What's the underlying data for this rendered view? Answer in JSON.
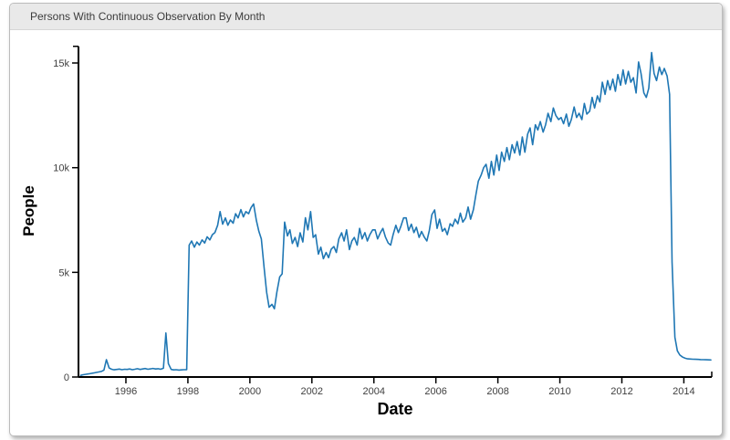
{
  "window": {
    "title": "Persons With Continuous Observation By Month"
  },
  "colors": {
    "line": "#1f77b4",
    "axis": "#000000",
    "tick_label": "#404040",
    "titlebar_bg": "#e9e9e9",
    "card_border": "#bcbcbc",
    "plot_bg": "#ffffff"
  },
  "chart_data": {
    "type": "line",
    "title": "Persons With Continuous Observation By Month",
    "xlabel": "Date",
    "ylabel": "People",
    "grid": false,
    "legend": "none",
    "xlim": [
      1994.47,
      2014.9
    ],
    "ylim": [
      0,
      15800
    ],
    "x_ticks": [
      1996,
      1998,
      2000,
      2002,
      2004,
      2006,
      2008,
      2010,
      2012,
      2014
    ],
    "x_tick_labels": [
      "1996",
      "1998",
      "2000",
      "2002",
      "2004",
      "2006",
      "2008",
      "2010",
      "2012",
      "2014"
    ],
    "y_ticks": [
      0,
      5000,
      10000,
      15000
    ],
    "y_tick_labels": [
      "0",
      "5k",
      "10k",
      "15k"
    ],
    "series": [
      {
        "name": "People",
        "points": [
          [
            1994.54,
            80
          ],
          [
            1994.62,
            110
          ],
          [
            1994.71,
            130
          ],
          [
            1994.79,
            150
          ],
          [
            1994.87,
            170
          ],
          [
            1994.96,
            190
          ],
          [
            1995.04,
            220
          ],
          [
            1995.12,
            240
          ],
          [
            1995.21,
            265
          ],
          [
            1995.29,
            330
          ],
          [
            1995.37,
            830
          ],
          [
            1995.46,
            430
          ],
          [
            1995.54,
            370
          ],
          [
            1995.62,
            345
          ],
          [
            1995.71,
            360
          ],
          [
            1995.79,
            380
          ],
          [
            1995.87,
            350
          ],
          [
            1995.96,
            370
          ],
          [
            1996.04,
            360
          ],
          [
            1996.12,
            385
          ],
          [
            1996.21,
            350
          ],
          [
            1996.29,
            370
          ],
          [
            1996.37,
            395
          ],
          [
            1996.46,
            360
          ],
          [
            1996.54,
            385
          ],
          [
            1996.62,
            405
          ],
          [
            1996.71,
            370
          ],
          [
            1996.79,
            390
          ],
          [
            1996.87,
            410
          ],
          [
            1996.96,
            385
          ],
          [
            1997.04,
            395
          ],
          [
            1997.12,
            370
          ],
          [
            1997.21,
            420
          ],
          [
            1997.29,
            2100
          ],
          [
            1997.37,
            640
          ],
          [
            1997.46,
            360
          ],
          [
            1997.54,
            340
          ],
          [
            1997.62,
            350
          ],
          [
            1997.71,
            330
          ],
          [
            1997.79,
            340
          ],
          [
            1997.87,
            350
          ],
          [
            1997.96,
            355
          ],
          [
            1998.04,
            6300
          ],
          [
            1998.12,
            6500
          ],
          [
            1998.21,
            6200
          ],
          [
            1998.29,
            6450
          ],
          [
            1998.37,
            6300
          ],
          [
            1998.46,
            6550
          ],
          [
            1998.54,
            6400
          ],
          [
            1998.62,
            6700
          ],
          [
            1998.71,
            6550
          ],
          [
            1998.79,
            6800
          ],
          [
            1998.87,
            6900
          ],
          [
            1998.96,
            7250
          ],
          [
            1999.04,
            7900
          ],
          [
            1999.12,
            7300
          ],
          [
            1999.21,
            7600
          ],
          [
            1999.29,
            7250
          ],
          [
            1999.37,
            7500
          ],
          [
            1999.46,
            7350
          ],
          [
            1999.54,
            7800
          ],
          [
            1999.62,
            7600
          ],
          [
            1999.71,
            8000
          ],
          [
            1999.79,
            7650
          ],
          [
            1999.87,
            7900
          ],
          [
            1999.96,
            7800
          ],
          [
            2000.04,
            8100
          ],
          [
            2000.12,
            8270
          ],
          [
            2000.21,
            7470
          ],
          [
            2000.29,
            6960
          ],
          [
            2000.37,
            6600
          ],
          [
            2000.46,
            5200
          ],
          [
            2000.54,
            4050
          ],
          [
            2000.62,
            3330
          ],
          [
            2000.71,
            3470
          ],
          [
            2000.79,
            3260
          ],
          [
            2000.87,
            4050
          ],
          [
            2000.96,
            4780
          ],
          [
            2001.04,
            4930
          ],
          [
            2001.12,
            7400
          ],
          [
            2001.21,
            6740
          ],
          [
            2001.29,
            7030
          ],
          [
            2001.37,
            6380
          ],
          [
            2001.46,
            6670
          ],
          [
            2001.54,
            6230
          ],
          [
            2001.62,
            6890
          ],
          [
            2001.71,
            6450
          ],
          [
            2001.79,
            7610
          ],
          [
            2001.87,
            7030
          ],
          [
            2001.96,
            7900
          ],
          [
            2002.04,
            6670
          ],
          [
            2002.12,
            6800
          ],
          [
            2002.21,
            5870
          ],
          [
            2002.29,
            6200
          ],
          [
            2002.37,
            5650
          ],
          [
            2002.46,
            5950
          ],
          [
            2002.54,
            5700
          ],
          [
            2002.62,
            6100
          ],
          [
            2002.71,
            6230
          ],
          [
            2002.79,
            5950
          ],
          [
            2002.87,
            6600
          ],
          [
            2002.96,
            6890
          ],
          [
            2003.04,
            6500
          ],
          [
            2003.12,
            7030
          ],
          [
            2003.21,
            6090
          ],
          [
            2003.29,
            6500
          ],
          [
            2003.37,
            6670
          ],
          [
            2003.46,
            6300
          ],
          [
            2003.54,
            7100
          ],
          [
            2003.62,
            6600
          ],
          [
            2003.71,
            6900
          ],
          [
            2003.79,
            6500
          ],
          [
            2003.87,
            6800
          ],
          [
            2003.96,
            7030
          ],
          [
            2004.04,
            7030
          ],
          [
            2004.12,
            6600
          ],
          [
            2004.21,
            6900
          ],
          [
            2004.29,
            7100
          ],
          [
            2004.37,
            6700
          ],
          [
            2004.46,
            6400
          ],
          [
            2004.54,
            6300
          ],
          [
            2004.62,
            6800
          ],
          [
            2004.71,
            7250
          ],
          [
            2004.79,
            6900
          ],
          [
            2004.87,
            7200
          ],
          [
            2004.96,
            7600
          ],
          [
            2005.04,
            7600
          ],
          [
            2005.12,
            7000
          ],
          [
            2005.21,
            7300
          ],
          [
            2005.29,
            6900
          ],
          [
            2005.37,
            7150
          ],
          [
            2005.46,
            6670
          ],
          [
            2005.54,
            6950
          ],
          [
            2005.62,
            6700
          ],
          [
            2005.71,
            6500
          ],
          [
            2005.79,
            7000
          ],
          [
            2005.87,
            7760
          ],
          [
            2005.96,
            7980
          ],
          [
            2006.04,
            7100
          ],
          [
            2006.12,
            7540
          ],
          [
            2006.21,
            6960
          ],
          [
            2006.29,
            7100
          ],
          [
            2006.37,
            6800
          ],
          [
            2006.46,
            7320
          ],
          [
            2006.54,
            7200
          ],
          [
            2006.62,
            7540
          ],
          [
            2006.71,
            7320
          ],
          [
            2006.79,
            7830
          ],
          [
            2006.87,
            7400
          ],
          [
            2006.96,
            7600
          ],
          [
            2007.04,
            8120
          ],
          [
            2007.12,
            7540
          ],
          [
            2007.21,
            8000
          ],
          [
            2007.29,
            8700
          ],
          [
            2007.37,
            9360
          ],
          [
            2007.46,
            9650
          ],
          [
            2007.54,
            10000
          ],
          [
            2007.62,
            10160
          ],
          [
            2007.71,
            9500
          ],
          [
            2007.79,
            10300
          ],
          [
            2007.87,
            9650
          ],
          [
            2007.96,
            10600
          ],
          [
            2008.04,
            9870
          ],
          [
            2008.12,
            10740
          ],
          [
            2008.21,
            10300
          ],
          [
            2008.29,
            10960
          ],
          [
            2008.37,
            10380
          ],
          [
            2008.46,
            11100
          ],
          [
            2008.54,
            10700
          ],
          [
            2008.62,
            11250
          ],
          [
            2008.71,
            10600
          ],
          [
            2008.79,
            11470
          ],
          [
            2008.87,
            10740
          ],
          [
            2008.96,
            11600
          ],
          [
            2009.04,
            11900
          ],
          [
            2009.12,
            11100
          ],
          [
            2009.21,
            12050
          ],
          [
            2009.29,
            11800
          ],
          [
            2009.37,
            12200
          ],
          [
            2009.46,
            11700
          ],
          [
            2009.54,
            12050
          ],
          [
            2009.62,
            12600
          ],
          [
            2009.71,
            12200
          ],
          [
            2009.79,
            12850
          ],
          [
            2009.87,
            12500
          ],
          [
            2009.96,
            12300
          ],
          [
            2010.04,
            12400
          ],
          [
            2010.12,
            12100
          ],
          [
            2010.21,
            12560
          ],
          [
            2010.29,
            11980
          ],
          [
            2010.37,
            12300
          ],
          [
            2010.46,
            12900
          ],
          [
            2010.54,
            12400
          ],
          [
            2010.62,
            12600
          ],
          [
            2010.71,
            12300
          ],
          [
            2010.79,
            13070
          ],
          [
            2010.87,
            12560
          ],
          [
            2010.96,
            12700
          ],
          [
            2011.04,
            13360
          ],
          [
            2011.12,
            12850
          ],
          [
            2011.21,
            13430
          ],
          [
            2011.29,
            13140
          ],
          [
            2011.37,
            14080
          ],
          [
            2011.46,
            13500
          ],
          [
            2011.54,
            14160
          ],
          [
            2011.62,
            13720
          ],
          [
            2011.71,
            14230
          ],
          [
            2011.79,
            13650
          ],
          [
            2011.87,
            14450
          ],
          [
            2011.96,
            13940
          ],
          [
            2012.04,
            14670
          ],
          [
            2012.12,
            14000
          ],
          [
            2012.21,
            14600
          ],
          [
            2012.29,
            14080
          ],
          [
            2012.37,
            14300
          ],
          [
            2012.46,
            13570
          ],
          [
            2012.54,
            15050
          ],
          [
            2012.62,
            14500
          ],
          [
            2012.71,
            13570
          ],
          [
            2012.79,
            13360
          ],
          [
            2012.87,
            13800
          ],
          [
            2012.96,
            15500
          ],
          [
            2013.04,
            14500
          ],
          [
            2013.12,
            14160
          ],
          [
            2013.21,
            14810
          ],
          [
            2013.29,
            14450
          ],
          [
            2013.37,
            14740
          ],
          [
            2013.46,
            14380
          ],
          [
            2013.54,
            13500
          ],
          [
            2013.62,
            5500
          ],
          [
            2013.71,
            1900
          ],
          [
            2013.79,
            1250
          ],
          [
            2013.87,
            1050
          ],
          [
            2013.96,
            950
          ],
          [
            2014.04,
            900
          ],
          [
            2014.12,
            870
          ],
          [
            2014.21,
            860
          ],
          [
            2014.29,
            850
          ],
          [
            2014.37,
            845
          ],
          [
            2014.46,
            840
          ],
          [
            2014.54,
            835
          ],
          [
            2014.62,
            830
          ],
          [
            2014.71,
            825
          ],
          [
            2014.79,
            820
          ],
          [
            2014.87,
            815
          ]
        ]
      }
    ]
  }
}
